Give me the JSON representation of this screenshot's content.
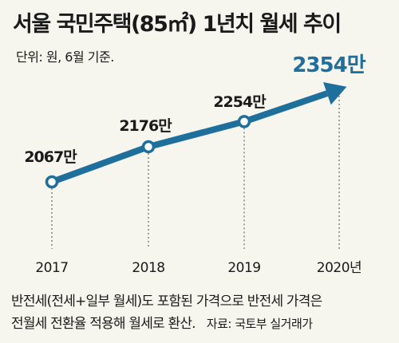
{
  "title": "서울 국민주택(85㎡) 1년치 월세 추이",
  "unit": "단위: 원, 6월 기준.",
  "footnote": {
    "line1": "반전세(전세+일부 월세)도 포함된 가격으로 반전세 가격은",
    "line2": "전월세 전환율 적용해 월세로 환산.",
    "source": "자료: 국토부 실거래가"
  },
  "chart_data": {
    "type": "line",
    "title": "서울 국민주택(85㎡) 1년치 월세 추이",
    "categories": [
      "2017",
      "2018",
      "2019",
      "2020년"
    ],
    "values": [
      2067,
      2176,
      2254,
      2354
    ],
    "labels": [
      "2067만",
      "2176만",
      "2254만",
      "2354만"
    ],
    "unit": "만 원",
    "colors": {
      "line": "#1f6f9d",
      "highlight": "#1f6f9d",
      "dot_fill": "#ffffff",
      "guide": "#666666"
    }
  }
}
